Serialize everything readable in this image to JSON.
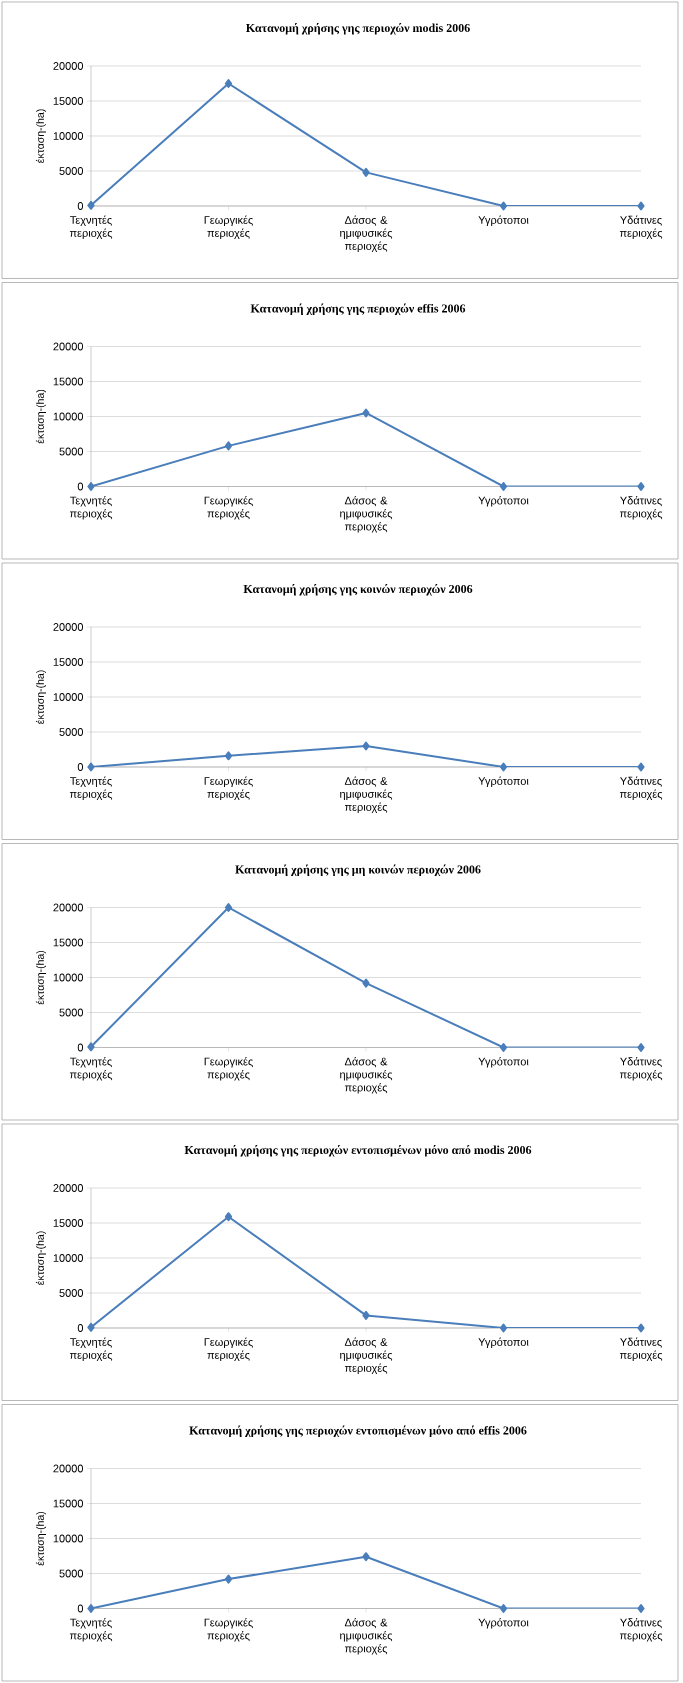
{
  "chart_data": [
    {
      "type": "line",
      "title": "Κατανομή χρήσης γης περιοχών modis 2006",
      "ylabel": "έκταση-(ha)",
      "categories": [
        "Τεχνητές περιοχές",
        "Γεωργικές περιοχές",
        "Δάσος & ημιφυσικές περιοχές",
        "Υγρότοποι",
        "Υδάτινες περιοχές"
      ],
      "series": [
        {
          "color": "#4a7ebb",
          "values": [
            100,
            17500,
            4800,
            0,
            0
          ]
        }
      ],
      "ylim": [
        0,
        20000
      ],
      "yticks": [
        0,
        5000,
        10000,
        15000,
        20000
      ],
      "grid": "y",
      "marker": "diamond"
    },
    {
      "type": "line",
      "title": "Κατανομή χρήσης γης περιοχών effis 2006",
      "ylabel": "έκταση-(ha)",
      "categories": [
        "Τεχνητές περιοχές",
        "Γεωργικές περιοχές",
        "Δάσος & ημιφυσικές περιοχές",
        "Υγρότοποι",
        "Υδάτινες περιοχές"
      ],
      "series": [
        {
          "color": "#4a7ebb",
          "values": [
            0,
            5800,
            10500,
            0,
            0
          ]
        }
      ],
      "ylim": [
        0,
        20000
      ],
      "yticks": [
        0,
        5000,
        10000,
        15000,
        20000
      ],
      "grid": "y",
      "marker": "diamond"
    },
    {
      "type": "line",
      "title": "Κατανομή χρήσης γης κοινών περιοχών 2006",
      "ylabel": "έκταση-(ha)",
      "categories": [
        "Τεχνητές περιοχές",
        "Γεωργικές περιοχές",
        "Δάσος & ημιφυσικές περιοχές",
        "Υγρότοποι",
        "Υδάτινες περιοχές"
      ],
      "series": [
        {
          "color": "#4a7ebb",
          "values": [
            0,
            1600,
            3000,
            0,
            0
          ]
        }
      ],
      "ylim": [
        0,
        20000
      ],
      "yticks": [
        0,
        5000,
        10000,
        15000,
        20000
      ],
      "grid": "y",
      "marker": "diamond"
    },
    {
      "type": "line",
      "title": "Κατανομή χρήσης γης μη κοινών περιοχών 2006",
      "ylabel": "έκταση-(ha)",
      "categories": [
        "Τεχνητές περιοχές",
        "Γεωργικές περιοχές",
        "Δάσος & ημιφυσικές περιοχές",
        "Υγρότοποι",
        "Υδάτινες περιοχές"
      ],
      "series": [
        {
          "color": "#4a7ebb",
          "values": [
            100,
            20000,
            9200,
            0,
            0
          ]
        }
      ],
      "ylim": [
        0,
        20000
      ],
      "yticks": [
        0,
        5000,
        10000,
        15000,
        20000
      ],
      "grid": "y",
      "marker": "diamond"
    },
    {
      "type": "line",
      "title": "Κατανομή χρήσης γης περιοχών εντοπισμένων μόνο από modis 2006",
      "ylabel": "έκταση-(ha)",
      "categories": [
        "Τεχνητές περιοχές",
        "Γεωργικές περιοχές",
        "Δάσος & ημιφυσικές περιοχές",
        "Υγρότοποι",
        "Υδάτινες περιοχές"
      ],
      "series": [
        {
          "color": "#4a7ebb",
          "values": [
            100,
            15900,
            1800,
            0,
            0
          ]
        }
      ],
      "ylim": [
        0,
        20000
      ],
      "yticks": [
        0,
        5000,
        10000,
        15000,
        20000
      ],
      "grid": "y",
      "marker": "diamond"
    },
    {
      "type": "line",
      "title": "Κατανομή χρήσης γης περιοχών εντοπισμένων μόνο από effis 2006",
      "ylabel": "έκταση-(ha)",
      "categories": [
        "Τεχνητές περιοχές",
        "Γεωργικές περιοχές",
        "Δάσος & ημιφυσικές περιοχές",
        "Υγρότοποι",
        "Υδάτινες περιοχές"
      ],
      "series": [
        {
          "color": "#4a7ebb",
          "values": [
            0,
            4200,
            7400,
            0,
            0
          ]
        }
      ],
      "ylim": [
        0,
        20000
      ],
      "yticks": [
        0,
        5000,
        10000,
        15000,
        20000
      ],
      "grid": "y",
      "marker": "diamond"
    }
  ]
}
